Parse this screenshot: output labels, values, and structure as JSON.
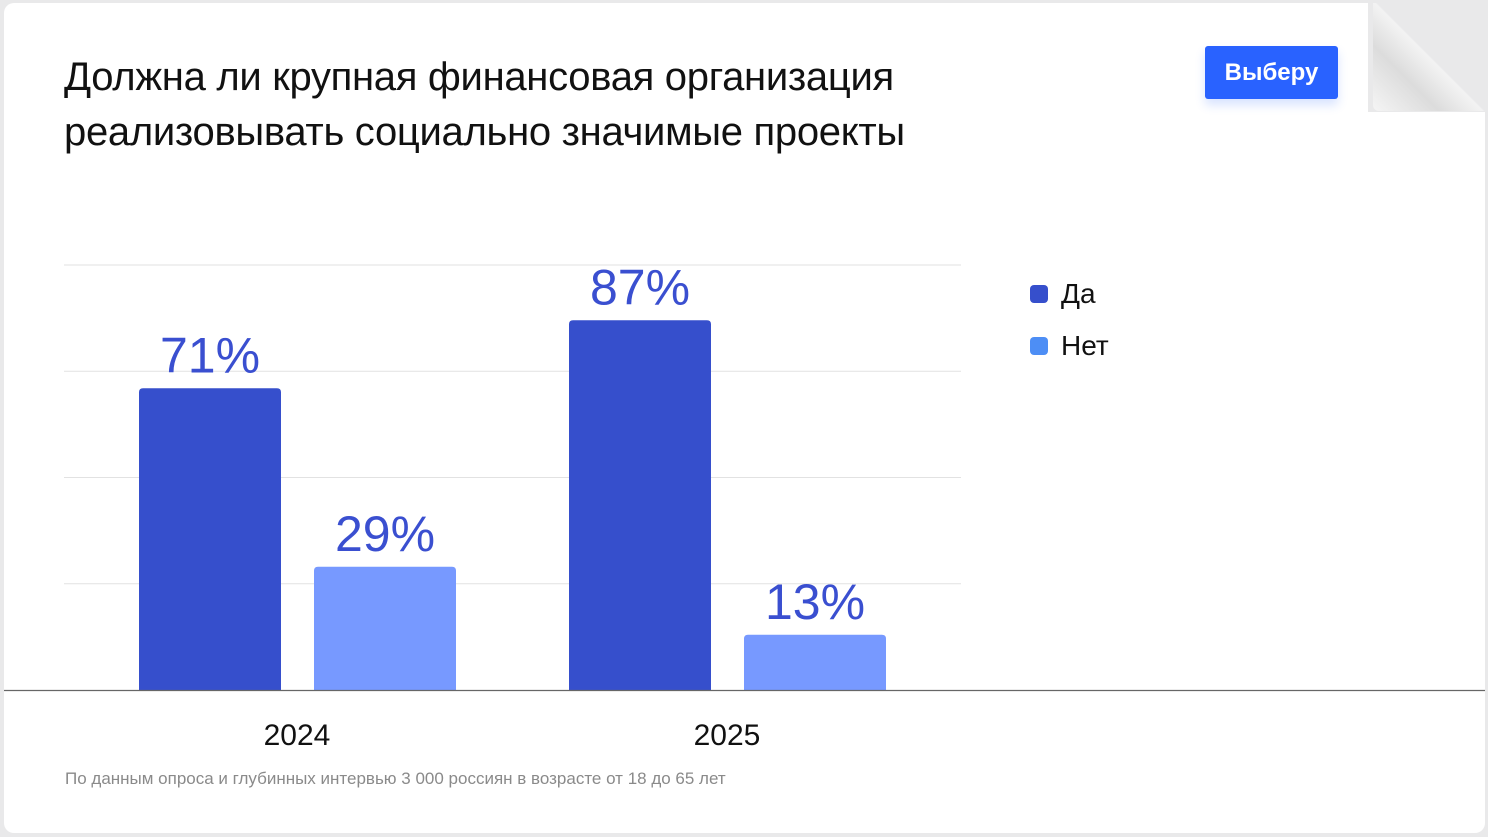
{
  "title_line1": "Должна ли крупная финансовая организация",
  "title_line2": "реализовывать социально значимые проекты",
  "brand": "Выберу",
  "footnote": "По данным опроса и глубинных интервью 3 000 россиян в возрасте от 18 до 65 лет",
  "colors": {
    "yes": "#364fcc",
    "no": "#7799ff",
    "label": "#3a4fd0"
  },
  "chart_data": {
    "type": "bar",
    "title": "Должна ли крупная финансовая организация реализовывать социально значимые проекты",
    "categories": [
      "2024",
      "2025"
    ],
    "series": [
      {
        "name": "Да",
        "values": [
          71,
          87
        ],
        "labels": [
          "71%",
          "87%"
        ]
      },
      {
        "name": "Нет",
        "values": [
          29,
          13
        ],
        "labels": [
          "29%",
          "13%"
        ]
      }
    ],
    "ylim": [
      0,
      100
    ],
    "gridlines": [
      25,
      50,
      75,
      100
    ],
    "grid": true,
    "legend": "right",
    "xlabel": "",
    "ylabel": ""
  }
}
